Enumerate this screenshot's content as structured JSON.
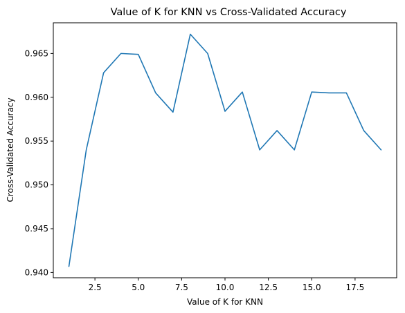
{
  "chart_data": {
    "type": "line",
    "title": "Value of K for KNN vs Cross-Validated Accuracy",
    "xlabel": "Value of K for KNN",
    "ylabel": "Cross-Validated Accuracy",
    "xlim": [
      0.1,
      19.9
    ],
    "ylim": [
      0.9394,
      0.9685
    ],
    "xticks": [
      2.5,
      5.0,
      7.5,
      10.0,
      12.5,
      15.0,
      17.5
    ],
    "xtick_labels": [
      "2.5",
      "5.0",
      "7.5",
      "10.0",
      "12.5",
      "15.0",
      "17.5"
    ],
    "yticks": [
      0.94,
      0.945,
      0.95,
      0.955,
      0.96,
      0.965
    ],
    "ytick_labels": [
      "0.940",
      "0.945",
      "0.950",
      "0.955",
      "0.960",
      "0.965"
    ],
    "grid": false,
    "series": [
      {
        "color": "#1f77b4",
        "x": [
          1,
          2,
          3,
          4,
          5,
          6,
          7,
          8,
          9,
          10,
          11,
          12,
          13,
          14,
          15,
          16,
          17,
          18,
          19
        ],
        "y": [
          0.9407,
          0.954,
          0.9628,
          0.965,
          0.9649,
          0.9605,
          0.9583,
          0.9672,
          0.965,
          0.9584,
          0.9606,
          0.954,
          0.9562,
          0.954,
          0.9606,
          0.9605,
          0.9605,
          0.9562,
          0.954
        ]
      }
    ]
  }
}
